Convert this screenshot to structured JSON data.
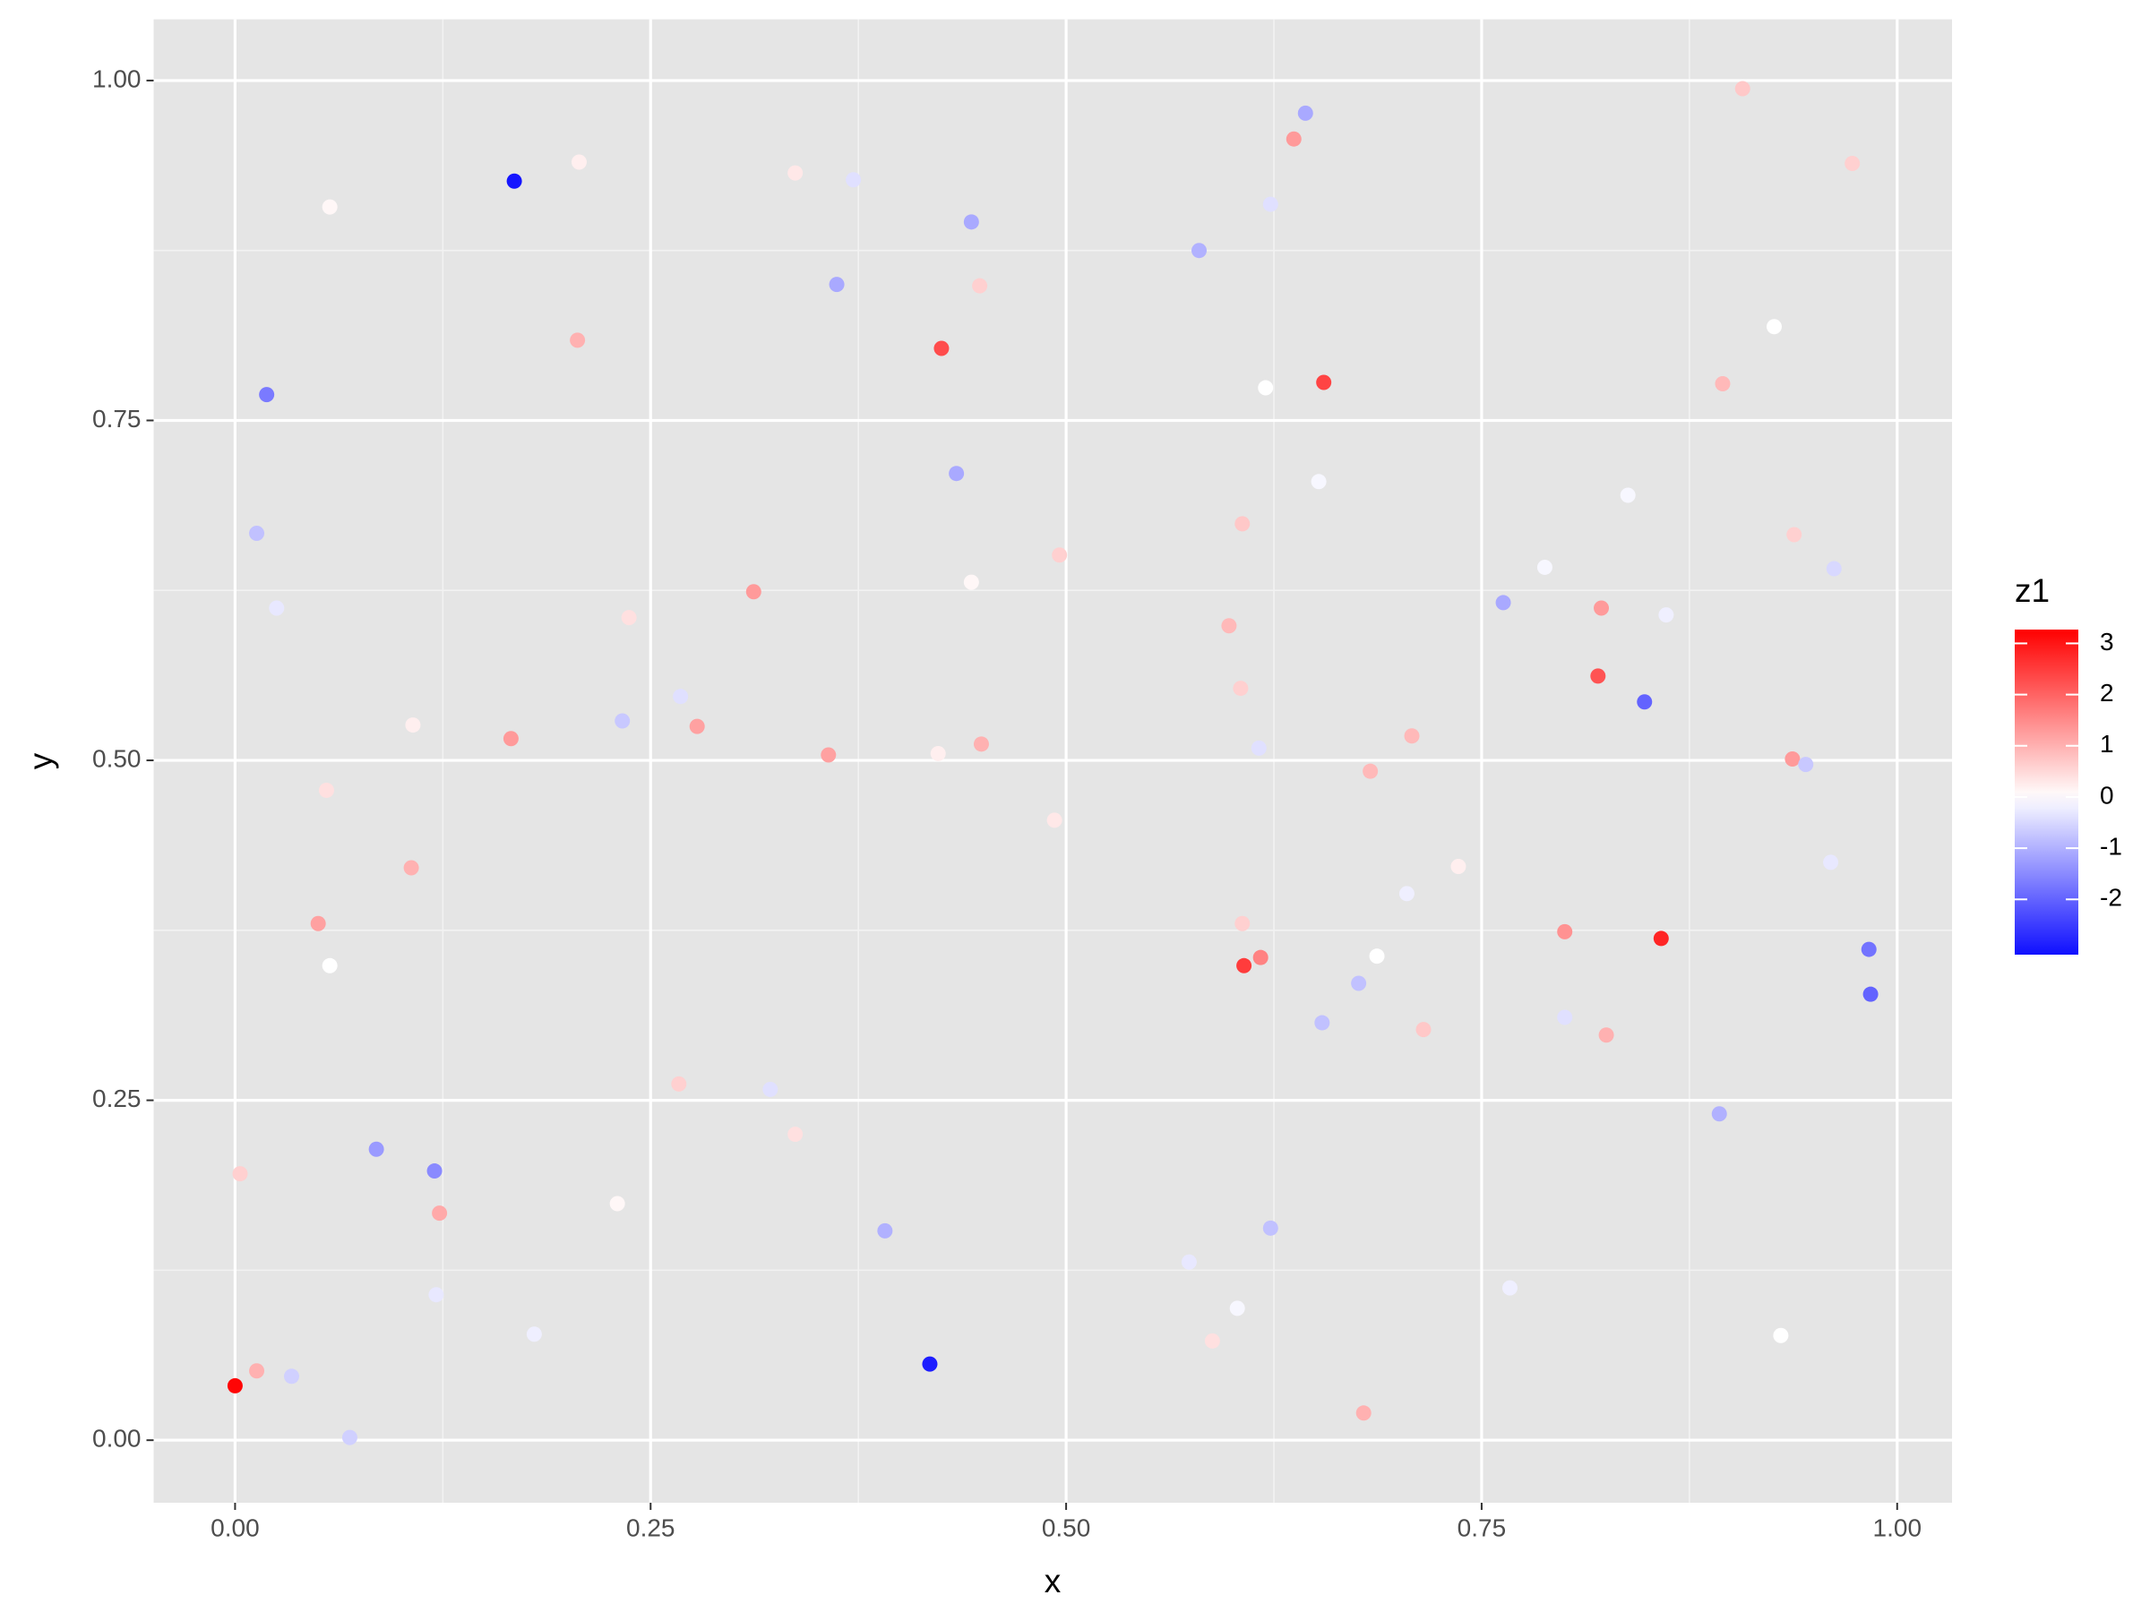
{
  "chart_data": {
    "type": "scatter",
    "x_label": "x",
    "y_label": "y",
    "xlim": [
      -0.049,
      1.033
    ],
    "ylim": [
      -0.046,
      1.045
    ],
    "xticks": [
      {
        "value": 0,
        "label": "0.00"
      },
      {
        "value": 0.25,
        "label": "0.25"
      },
      {
        "value": 0.5,
        "label": "0.50"
      },
      {
        "value": 0.75,
        "label": "0.75"
      },
      {
        "value": 1,
        "label": "1.00"
      }
    ],
    "yticks": [
      {
        "value": 0,
        "label": "0.00"
      },
      {
        "value": 0.25,
        "label": "0.25"
      },
      {
        "value": 0.5,
        "label": "0.50"
      },
      {
        "value": 0.75,
        "label": "0.75"
      },
      {
        "value": 1,
        "label": "1.00"
      }
    ],
    "grid": true,
    "colorbar": {
      "title": "z1",
      "lim": [
        -3.08,
        3.27
      ],
      "ticks": [
        3,
        2,
        1,
        0,
        -1,
        -2
      ],
      "low": "#0000ff",
      "mid": "#ffffff",
      "high": "#ff0000",
      "midpoint": 0
    },
    "x": [
      0.0,
      0.003,
      0.013,
      0.034,
      0.069,
      0.013,
      0.019,
      0.025,
      0.057,
      0.055,
      0.05,
      0.057,
      0.085,
      0.12,
      0.123,
      0.121,
      0.106,
      0.107,
      0.168,
      0.207,
      0.206,
      0.166,
      0.18,
      0.23,
      0.233,
      0.237,
      0.267,
      0.268,
      0.278,
      0.312,
      0.322,
      0.337,
      0.337,
      0.357,
      0.362,
      0.372,
      0.391,
      0.418,
      0.425,
      0.423,
      0.434,
      0.443,
      0.443,
      0.448,
      0.449,
      0.493,
      0.496,
      0.574,
      0.58,
      0.588,
      0.598,
      0.603,
      0.605,
      0.606,
      0.606,
      0.607,
      0.617,
      0.616,
      0.62,
      0.623,
      0.623,
      0.637,
      0.644,
      0.652,
      0.655,
      0.654,
      0.676,
      0.679,
      0.683,
      0.687,
      0.705,
      0.708,
      0.715,
      0.736,
      0.763,
      0.767,
      0.788,
      0.8,
      0.8,
      0.82,
      0.822,
      0.825,
      0.838,
      0.848,
      0.858,
      0.861,
      0.893,
      0.895,
      0.907,
      0.926,
      0.93,
      0.937,
      0.938,
      0.945,
      0.96,
      0.962,
      0.973,
      0.983,
      0.984
    ],
    "y": [
      0.04,
      0.196,
      0.051,
      0.047,
      0.002,
      0.667,
      0.769,
      0.612,
      0.907,
      0.478,
      0.38,
      0.349,
      0.214,
      0.198,
      0.167,
      0.107,
      0.421,
      0.526,
      0.926,
      0.94,
      0.809,
      0.516,
      0.078,
      0.174,
      0.529,
      0.605,
      0.262,
      0.547,
      0.525,
      0.624,
      0.258,
      0.932,
      0.225,
      0.504,
      0.85,
      0.927,
      0.154,
      0.056,
      0.803,
      0.505,
      0.711,
      0.896,
      0.631,
      0.849,
      0.512,
      0.456,
      0.651,
      0.131,
      0.875,
      0.073,
      0.599,
      0.097,
      0.553,
      0.674,
      0.38,
      0.349,
      0.355,
      0.509,
      0.774,
      0.909,
      0.156,
      0.957,
      0.976,
      0.705,
      0.778,
      0.307,
      0.336,
      0.02,
      0.492,
      0.356,
      0.402,
      0.518,
      0.302,
      0.422,
      0.616,
      0.112,
      0.642,
      0.374,
      0.311,
      0.562,
      0.612,
      0.298,
      0.695,
      0.543,
      0.369,
      0.607,
      0.24,
      0.777,
      0.994,
      0.819,
      0.077,
      0.501,
      0.666,
      0.497,
      0.425,
      0.641,
      0.939,
      0.361,
      0.328
    ],
    "z": [
      3.2,
      0.6,
      1.0,
      -0.6,
      -0.6,
      -0.8,
      -1.7,
      -0.3,
      0.1,
      0.4,
      1.2,
      0.0,
      -1.3,
      -1.5,
      1.1,
      -0.3,
      1.0,
      0.2,
      -3.0,
      0.2,
      1.0,
      1.3,
      -0.2,
      0.1,
      -0.7,
      0.4,
      0.6,
      -0.4,
      1.2,
      1.3,
      -0.4,
      0.3,
      0.4,
      1.2,
      -1.1,
      -0.4,
      -1.0,
      -2.9,
      2.3,
      0.2,
      -1.1,
      -1.1,
      0.1,
      0.6,
      1.0,
      0.3,
      0.6,
      -0.3,
      -1.0,
      0.4,
      0.9,
      -0.1,
      0.6,
      0.7,
      0.6,
      2.5,
      1.6,
      -0.4,
      0.0,
      -0.4,
      -0.8,
      1.3,
      -1.1,
      -0.1,
      2.4,
      -0.8,
      -0.8,
      1.0,
      0.9,
      0.0,
      -0.2,
      0.9,
      0.7,
      0.2,
      -1.1,
      -0.2,
      -0.1,
      1.4,
      -0.4,
      2.2,
      1.3,
      1.0,
      -0.1,
      -2.0,
      2.8,
      -0.2,
      -1.0,
      0.9,
      0.7,
      0.0,
      0.0,
      1.3,
      0.6,
      -0.7,
      -0.3,
      -0.5,
      0.6,
      -1.8,
      -2.0
    ]
  }
}
